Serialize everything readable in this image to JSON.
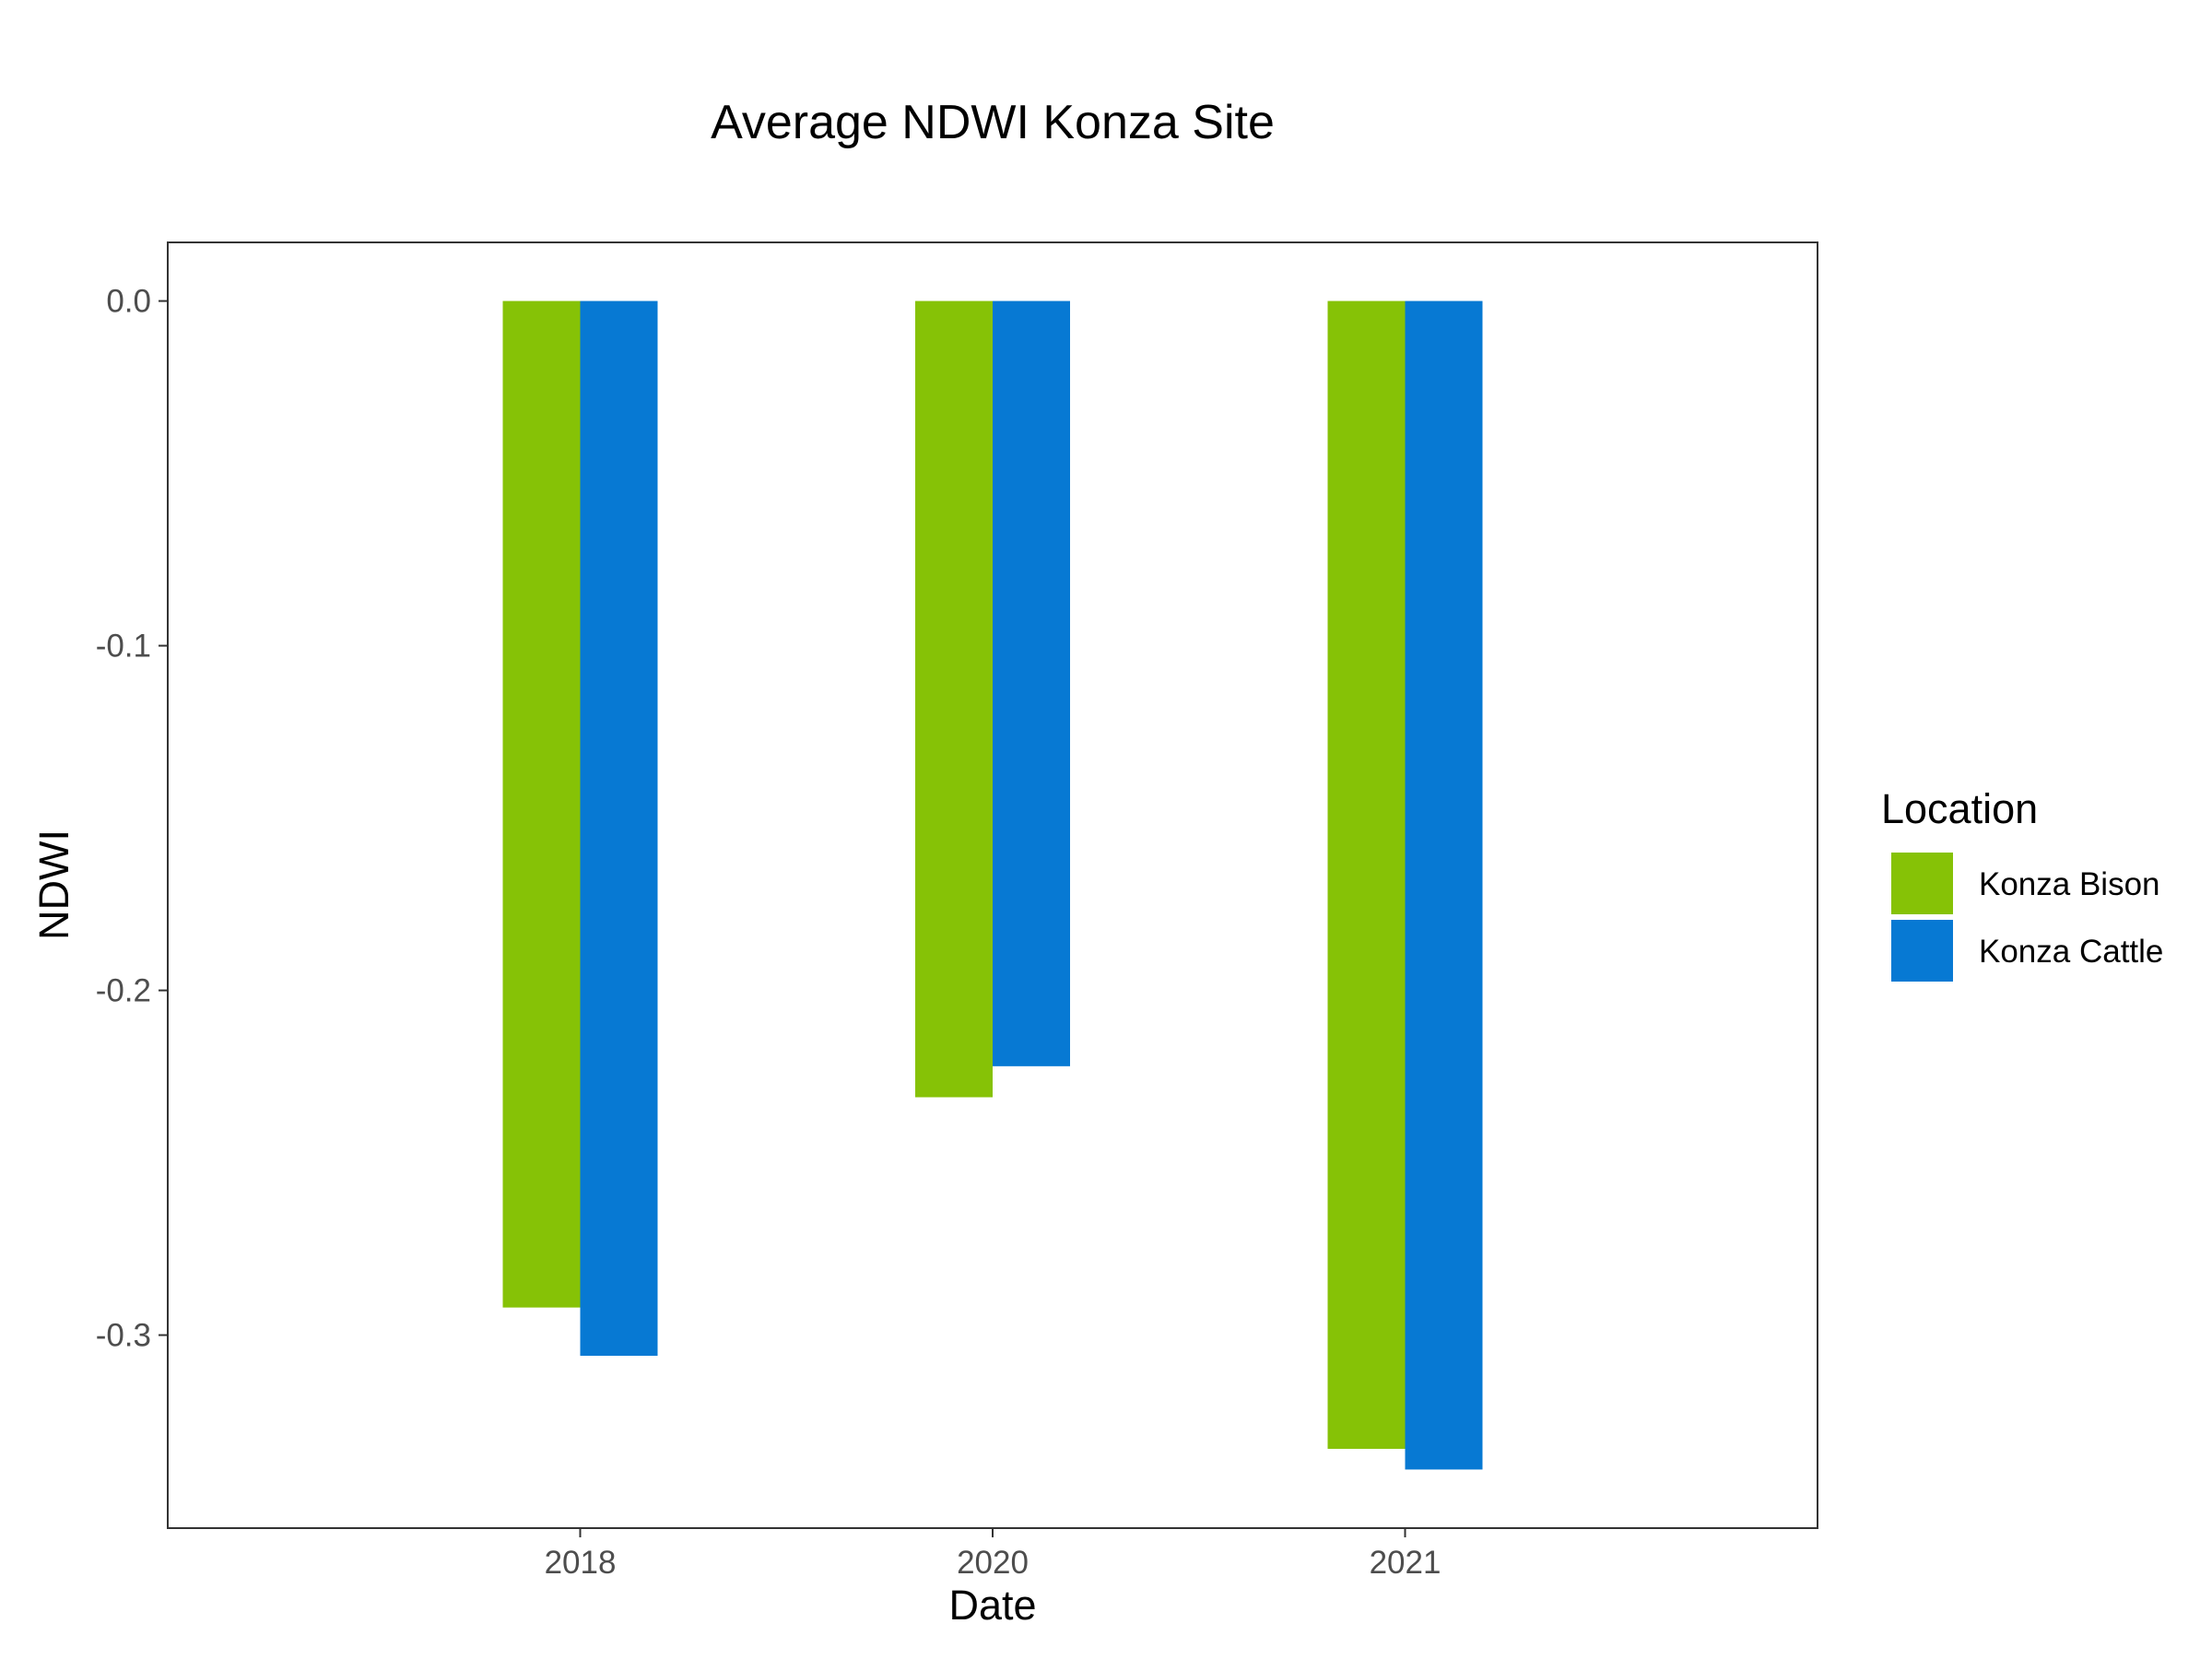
{
  "chart_data": {
    "type": "bar",
    "title": "Average NDWI Konza Site",
    "xlabel": "Date",
    "ylabel": "NDWI",
    "categories": [
      "2018",
      "2020",
      "2021"
    ],
    "series": [
      {
        "name": "Konza Bison",
        "color": "#86c206",
        "values": [
          -0.292,
          -0.231,
          -0.333
        ]
      },
      {
        "name": "Konza Cattle",
        "color": "#0779d3",
        "values": [
          -0.306,
          -0.222,
          -0.339
        ]
      }
    ],
    "ylim": [
      -0.356,
      0.017
    ],
    "yticks": [
      0.0,
      -0.1,
      -0.2,
      -0.3
    ],
    "ytick_labels": [
      "0.0",
      "-0.1",
      "-0.2",
      "-0.3"
    ],
    "grid": false,
    "legend": {
      "title": "Location",
      "position": "right"
    }
  }
}
